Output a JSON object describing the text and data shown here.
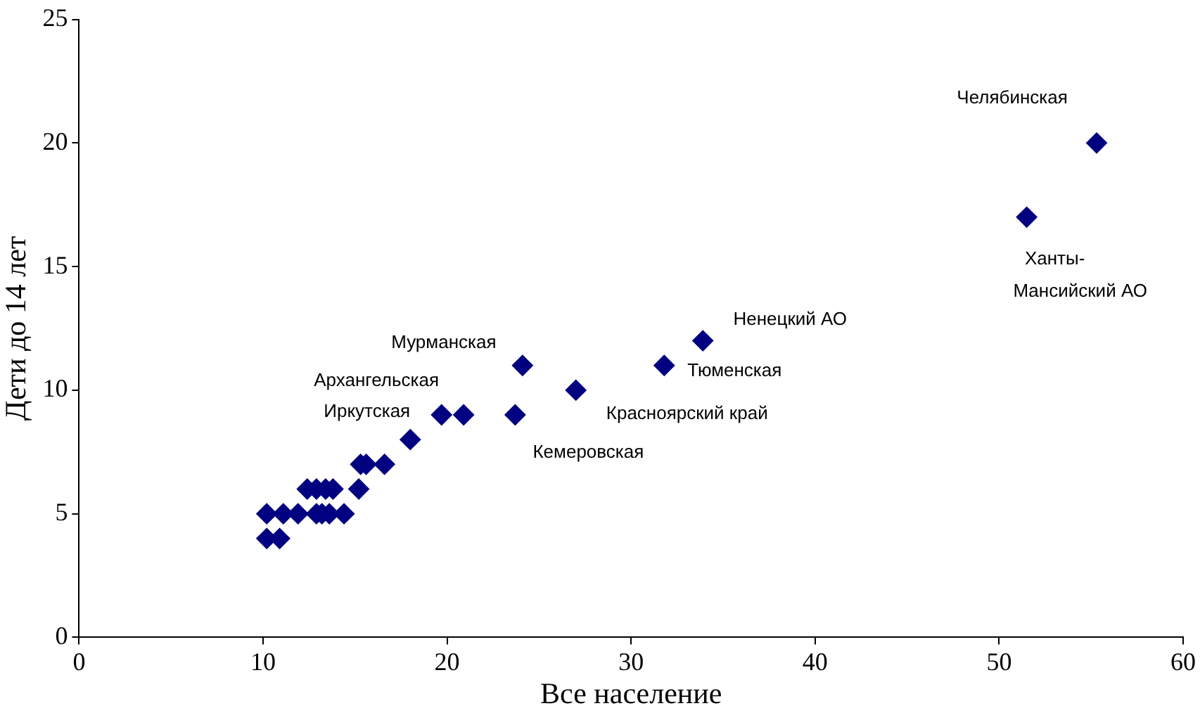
{
  "chart_data": {
    "type": "scatter",
    "xlabel": "Все население",
    "ylabel": "Дети до 14 лет",
    "x": [
      10.2,
      10.9,
      10.2,
      11.1,
      11.9,
      12.9,
      13.2,
      13.6,
      14.4,
      12.4,
      12.9,
      13.4,
      13.8,
      15.2,
      15.3,
      15.6,
      16.6,
      18.0,
      19.7,
      20.9,
      23.7,
      24.1,
      27.0,
      31.8,
      33.9,
      51.5,
      55.3
    ],
    "series": [
      {
        "color": "#000080",
        "values": [
          4,
          4,
          5,
          5,
          5,
          5,
          5,
          5,
          5,
          6,
          6,
          6,
          6,
          6,
          7,
          7,
          7,
          8,
          9,
          9,
          9,
          11,
          10,
          11,
          12,
          17,
          20
        ]
      }
    ],
    "xlim": [
      0,
      60
    ],
    "ylim": [
      0,
      25
    ],
    "xticks": [
      0,
      10,
      20,
      30,
      40,
      50,
      60
    ],
    "yticks": [
      0,
      5,
      10,
      15,
      20,
      25
    ],
    "grid": false,
    "legend": false,
    "marker": "diamond",
    "annotations": [
      {
        "text": "Челябинская",
        "x": 55.3,
        "y": 20
      },
      {
        "text": "Ханты-Мансийский АО",
        "x": 51.5,
        "y": 17
      },
      {
        "text": "Ненецкий АО",
        "x": 33.9,
        "y": 12
      },
      {
        "text": "Тюменская",
        "x": 31.8,
        "y": 11
      },
      {
        "text": "Красноярский край",
        "x": 27.0,
        "y": 10
      },
      {
        "text": "Кемеровская",
        "x": 23.7,
        "y": 9
      },
      {
        "text": "Мурманская",
        "x": 24.1,
        "y": 11
      },
      {
        "text": "Архангельская",
        "x": 20.9,
        "y": 9
      },
      {
        "text": "Иркутская",
        "x": 19.7,
        "y": 9
      }
    ]
  }
}
